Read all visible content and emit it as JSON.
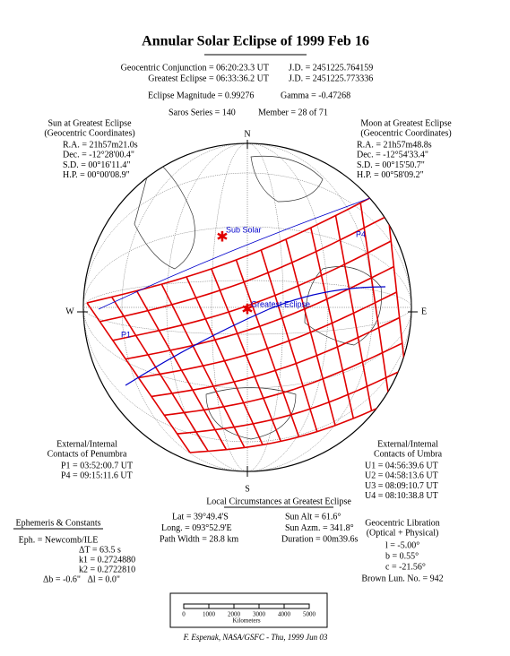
{
  "title": "Annular Solar Eclipse of 1999 Feb 16",
  "header": {
    "conjunction": "Geocentric Conjunction = 06:20:23.3 UT",
    "conjunction_jd": "J.D. = 2451225.764159",
    "greatest": "Greatest Eclipse = 06:33:36.2 UT",
    "greatest_jd": "J.D. = 2451225.773336",
    "magnitude": "Eclipse Magnitude = 0.99276",
    "gamma": "Gamma = -0.47268",
    "saros": "Saros Series = 140",
    "member": "Member = 28 of 71"
  },
  "sun": {
    "title": [
      "Sun at Greatest Eclipse",
      "(Geocentric Coordinates)"
    ],
    "lines": [
      "R.A. = 21h57m21.0s",
      "Dec. = -12°28'00.4\"",
      "S.D. = 00°16'11.4\"",
      "H.P. = 00°00'08.9\""
    ]
  },
  "moon": {
    "title": [
      "Moon at Greatest Eclipse",
      "(Geocentric Coordinates)"
    ],
    "lines": [
      "R.A. = 21h57m48.8s",
      "Dec. = -12°54'33.4\"",
      "S.D. = 00°15'50.7\"",
      "H.P. = 00°58'09.2\""
    ]
  },
  "map": {
    "compass": [
      "N",
      "S",
      "W",
      "E"
    ],
    "labels": [
      "Sub Solar",
      "Greatest Eclipse",
      "P1",
      "P4"
    ]
  },
  "penumbra": {
    "title": [
      "External/Internal",
      "Contacts of Penumbra"
    ],
    "lines": [
      "P1 = 03:52:00.7 UT",
      "P4 = 09:15:11.6 UT"
    ]
  },
  "umbra": {
    "title": [
      "External/Internal",
      "Contacts of Umbra"
    ],
    "lines": [
      "U1 = 04:56:39.6 UT",
      "U2 = 04:58:13.6 UT",
      "U3 = 08:09:10.7 UT",
      "U4 = 08:10:38.8 UT"
    ]
  },
  "local": {
    "title": "Local Circumstances at Greatest Eclipse",
    "lines": [
      [
        "Lat = 39°49.4'S",
        "Sun Alt = 61.6°"
      ],
      [
        "Long. = 093°52.9'E",
        "Sun Azm. = 341.8°"
      ],
      [
        "Path Width = 28.8 km",
        "Duration = 00m39.6s"
      ]
    ]
  },
  "ephemeris": {
    "title": "Ephemeris & Constants",
    "lines": [
      "Eph. = Newcomb/ILE",
      "ΔT = 63.5 s",
      "k1 = 0.2724880",
      "k2 = 0.2722810",
      "Δb = -0.6\"   Δl = 0.0\""
    ]
  },
  "libration": {
    "title": [
      "Geocentric Libration",
      "(Optical + Physical)"
    ],
    "lines": [
      "l = -5.00°",
      "b = 0.55°",
      "c = -21.56°"
    ],
    "brown": "Brown Lun. No. = 942"
  },
  "scale": {
    "ticks": [
      "0",
      "1000",
      "2000",
      "3000",
      "4000",
      "5000"
    ],
    "unit": "Kilometers"
  },
  "footer": "F. Espenak, NASA/GSFC - Thu, 1999 Jun 03"
}
